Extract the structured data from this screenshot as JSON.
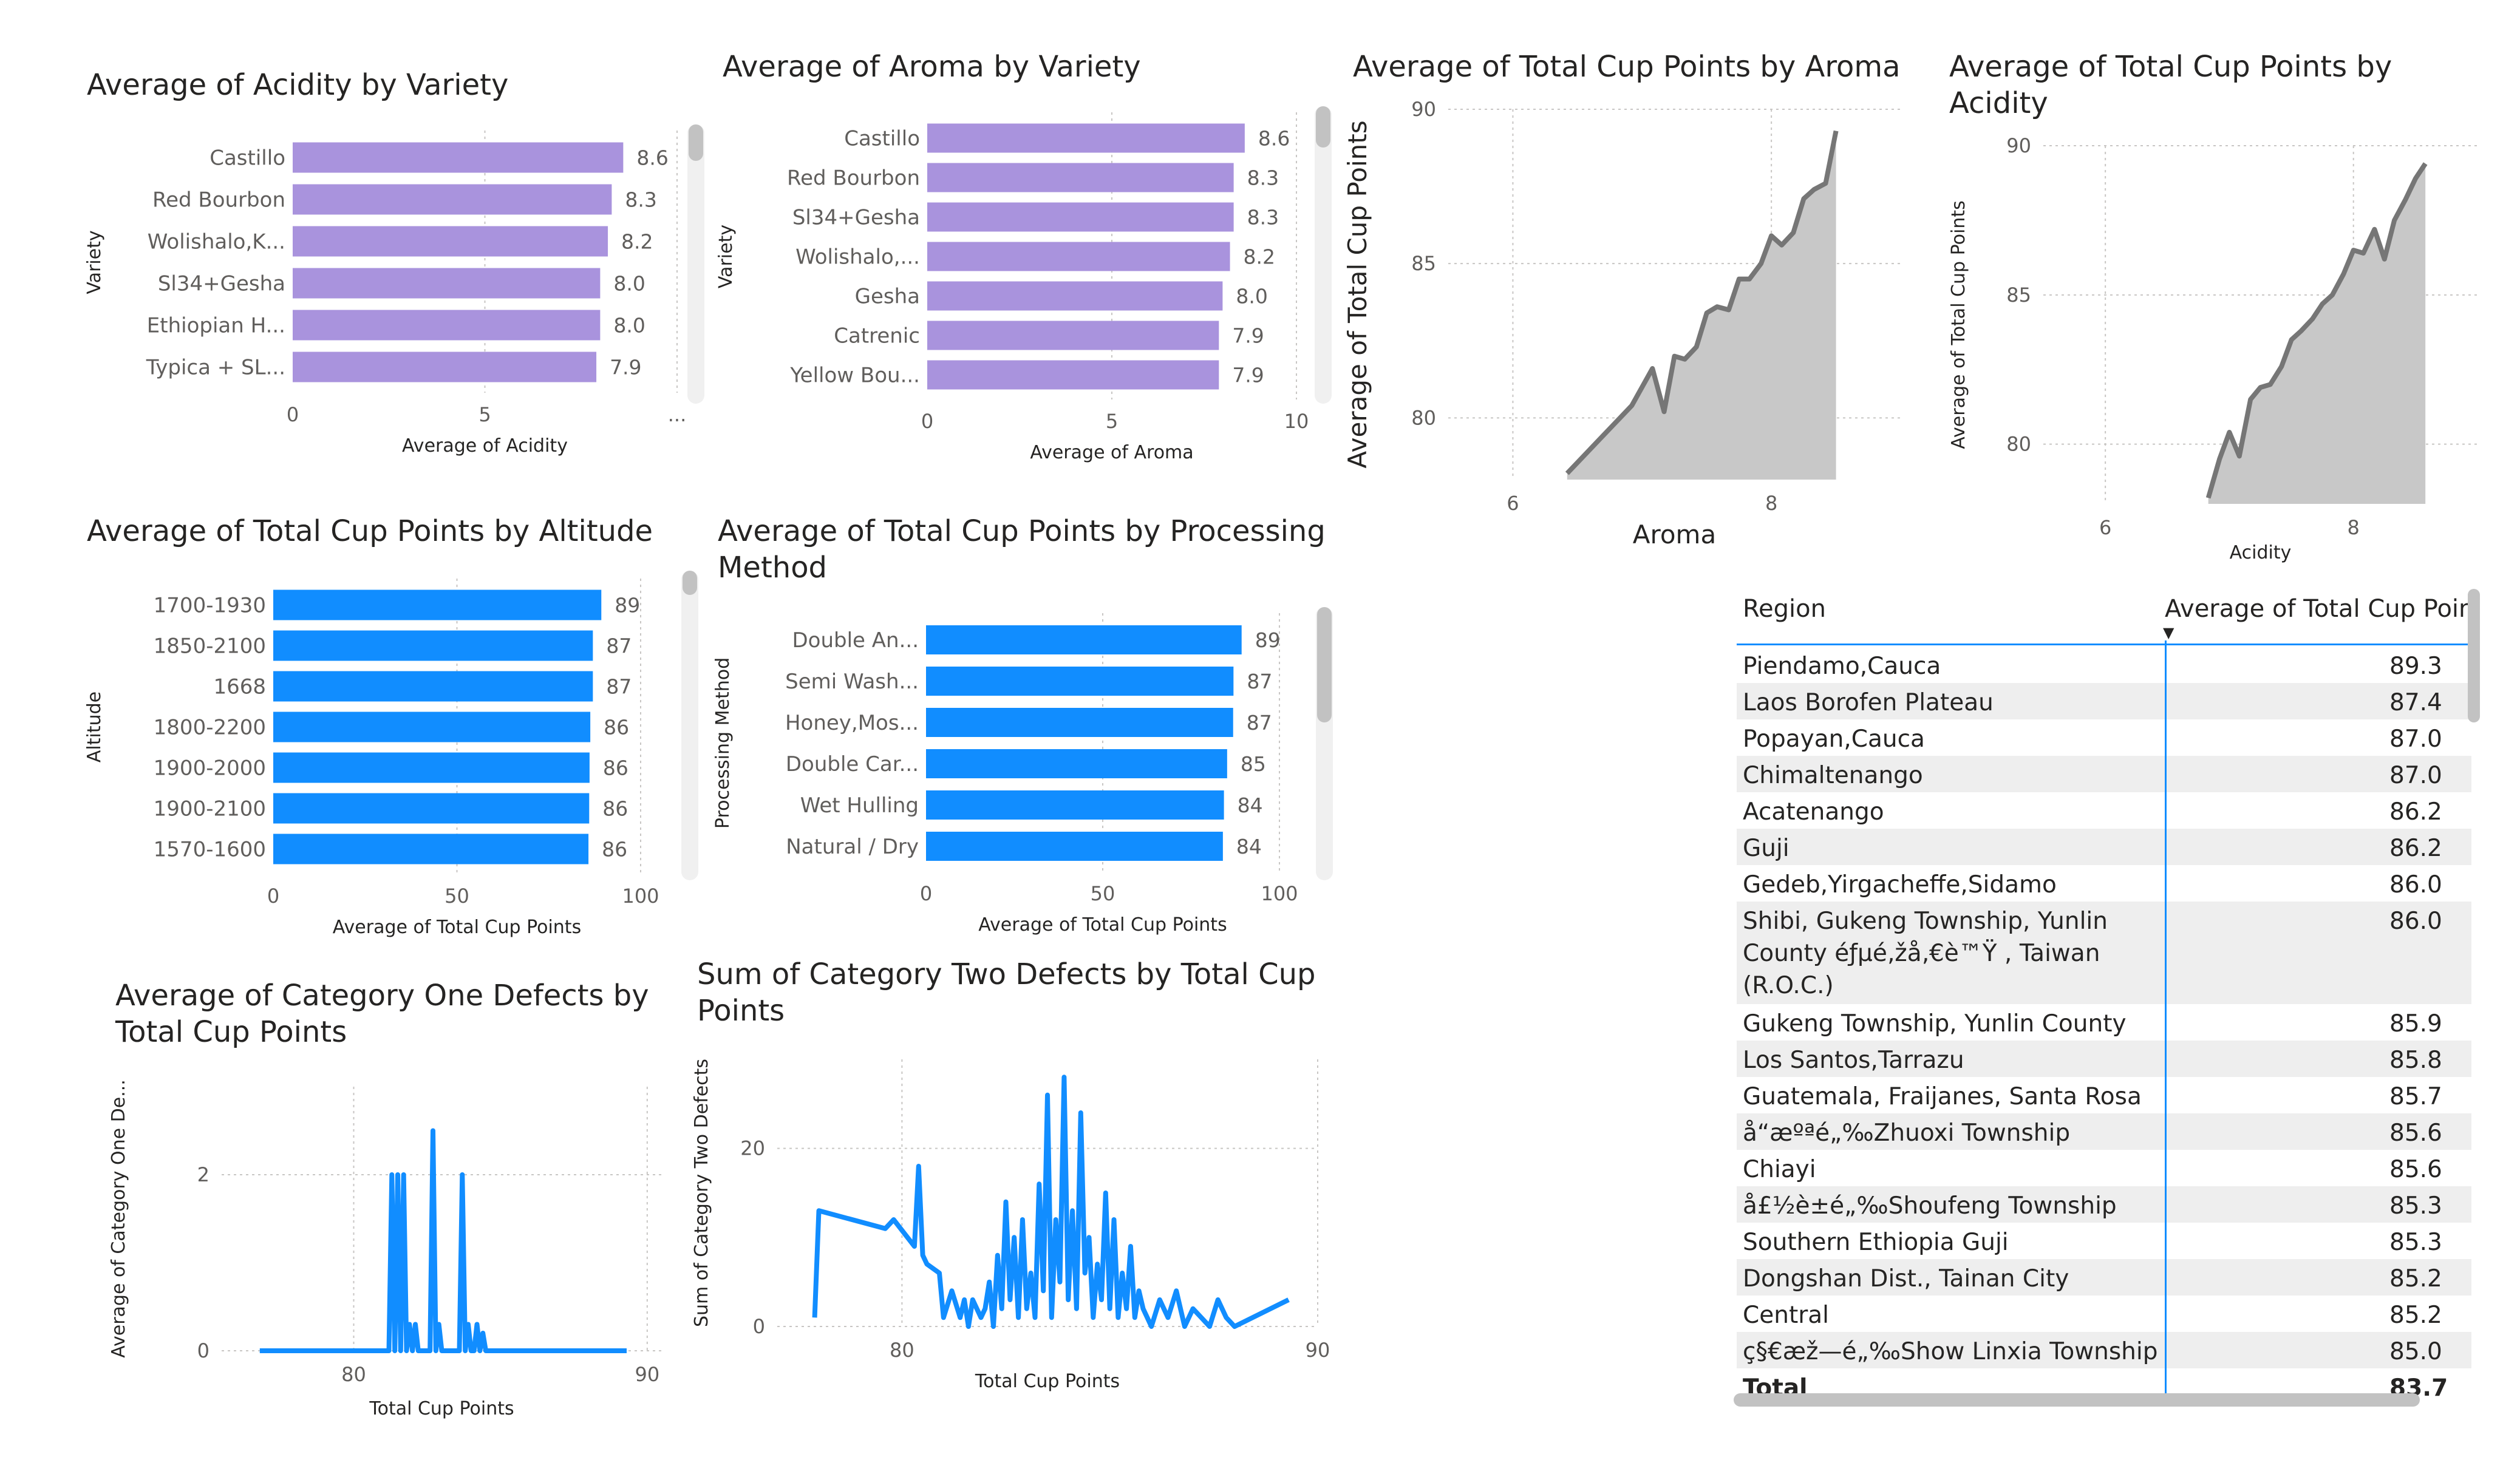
{
  "colors": {
    "purple": "#a993dd",
    "blue": "#118dff",
    "area_line": "#767676",
    "area_fill": "#c8c8c8",
    "grid": "#c8c6c4",
    "row_alt": "#eeeeee"
  },
  "charts": {
    "acidity_by_variety": {
      "title": "Average of Acidity by Variety",
      "chart_data": {
        "type": "bar",
        "orientation": "horizontal",
        "categories": [
          "Castillo",
          "Red Bourbon",
          "Wolishalo,K...",
          "Sl34+Gesha",
          "Ethiopian H...",
          "Typica + SL..."
        ],
        "values": [
          8.6,
          8.3,
          8.2,
          8.0,
          8.0,
          7.9
        ],
        "value_labels": [
          "8.6",
          "8.3",
          "8.2",
          "8.0",
          "8.0",
          "7.9"
        ],
        "xlabel": "Average of Acidity",
        "ylabel": "Variety",
        "ticks": [
          "0",
          "5",
          "..."
        ],
        "xlim": [
          0,
          10
        ],
        "grid": true
      }
    },
    "aroma_by_variety": {
      "title": "Average of Aroma by Variety",
      "chart_data": {
        "type": "bar",
        "orientation": "horizontal",
        "categories": [
          "Castillo",
          "Red Bourbon",
          "Sl34+Gesha",
          "Wolishalo,...",
          "Gesha",
          "Catrenic",
          "Yellow Bou..."
        ],
        "values": [
          8.6,
          8.3,
          8.3,
          8.2,
          8.0,
          7.9,
          7.9
        ],
        "value_labels": [
          "8.6",
          "8.3",
          "8.3",
          "8.2",
          "8.0",
          "7.9",
          "7.9"
        ],
        "xlabel": "Average of Aroma",
        "ylabel": "Variety",
        "ticks": [
          "0",
          "5",
          "10"
        ],
        "xlim": [
          0,
          10
        ],
        "grid": true
      }
    },
    "tcp_by_aroma": {
      "title": "Average of Total Cup Points by Aroma",
      "chart_data": {
        "type": "area",
        "x": [
          6.42,
          6.67,
          6.92,
          7.08,
          7.17,
          7.25,
          7.33,
          7.42,
          7.5,
          7.58,
          7.67,
          7.75,
          7.83,
          7.92,
          8.0,
          8.08,
          8.17,
          8.25,
          8.33,
          8.42,
          8.5
        ],
        "y": [
          78.2,
          79.3,
          80.4,
          81.6,
          80.2,
          82.0,
          81.9,
          82.3,
          83.4,
          83.6,
          83.5,
          84.5,
          84.5,
          85.0,
          85.9,
          85.6,
          86.0,
          87.1,
          87.4,
          87.6,
          89.3
        ],
        "xlabel": "Aroma",
        "ylabel": "Average of Total Cup Points",
        "xticks": [
          "6",
          "8"
        ],
        "yticks": [
          "80",
          "85",
          "90"
        ],
        "xlim": [
          5.5,
          9.0
        ],
        "ylim": [
          78,
          90
        ],
        "grid": true
      }
    },
    "tcp_by_acidity": {
      "title": "Average of Total Cup Points by\nAcidity",
      "chart_data": {
        "type": "area",
        "x": [
          6.83,
          6.92,
          7.0,
          7.08,
          7.17,
          7.25,
          7.33,
          7.42,
          7.5,
          7.58,
          7.67,
          7.75,
          7.83,
          7.92,
          8.0,
          8.08,
          8.17,
          8.25,
          8.33,
          8.42,
          8.5,
          8.58
        ],
        "y": [
          78.2,
          79.5,
          80.4,
          79.6,
          81.5,
          81.9,
          82.0,
          82.6,
          83.5,
          83.8,
          84.2,
          84.7,
          85.0,
          85.7,
          86.5,
          86.4,
          87.2,
          86.2,
          87.5,
          88.2,
          88.9,
          89.4
        ],
        "xlabel": "Acidity",
        "ylabel": "Average of Total Cup Points",
        "xticks": [
          "6",
          "8"
        ],
        "yticks": [
          "80",
          "85",
          "90"
        ],
        "xlim": [
          5.5,
          9.0
        ],
        "ylim": [
          78,
          90
        ],
        "grid": true
      }
    },
    "tcp_by_altitude": {
      "title": "Average of Total Cup Points by Altitude",
      "chart_data": {
        "type": "bar",
        "orientation": "horizontal",
        "categories": [
          "1700-1930",
          "1850-2100",
          "1668",
          "1800-2200",
          "1900-2000",
          "1900-2100",
          "1570-1600"
        ],
        "values": [
          89.3,
          87.0,
          87.0,
          86.3,
          86.1,
          86.0,
          85.8
        ],
        "value_labels": [
          "89",
          "87",
          "87",
          "86",
          "86",
          "86",
          "86"
        ],
        "xlabel": "Average of Total Cup Points",
        "ylabel": "Altitude",
        "ticks": [
          "0",
          "50",
          "100"
        ],
        "xlim": [
          0,
          100
        ],
        "grid": true
      }
    },
    "tcp_by_processing": {
      "title": "Average of Total Cup Points by Processing\nMethod",
      "chart_data": {
        "type": "bar",
        "orientation": "horizontal",
        "categories": [
          "Double An...",
          "Semi Wash...",
          "Honey,Mos...",
          "Double Car...",
          "Wet Hulling",
          "Natural / Dry"
        ],
        "values": [
          89.3,
          87.0,
          86.9,
          85.2,
          84.3,
          84.0
        ],
        "value_labels": [
          "89",
          "87",
          "87",
          "85",
          "84",
          "84"
        ],
        "xlabel": "Average of Total Cup Points",
        "ylabel": "Processing Method",
        "ticks": [
          "0",
          "50",
          "100"
        ],
        "xlim": [
          0,
          100
        ],
        "grid": true
      }
    },
    "cat1_by_tcp": {
      "title": "Average of Category One Defects by\nTotal Cup Points",
      "chart_data": {
        "type": "line",
        "x": [
          76.8,
          81.2,
          81.3,
          81.4,
          81.5,
          81.6,
          81.7,
          81.8,
          81.9,
          82.0,
          82.1,
          82.2,
          82.3,
          82.4,
          82.5,
          82.6,
          82.7,
          82.8,
          82.9,
          83.0,
          83.1,
          83.2,
          83.3,
          83.4,
          83.5,
          83.6,
          83.7,
          83.8,
          83.9,
          84.0,
          84.1,
          84.2,
          84.3,
          84.4,
          84.5,
          84.6,
          84.7,
          84.8,
          89.3
        ],
        "y": [
          0,
          0,
          2,
          0,
          2,
          0,
          2,
          0,
          0.3,
          0,
          0.3,
          0,
          0,
          0,
          0,
          0,
          2.5,
          0,
          0.3,
          0,
          0,
          0,
          0,
          0,
          0,
          0,
          2,
          0,
          0.3,
          0,
          0,
          0.3,
          0,
          0.2,
          0,
          0,
          0,
          0,
          0
        ],
        "xlabel": "Total Cup Points",
        "ylabel": "Average of Category One De...",
        "xticks": [
          "80",
          "90"
        ],
        "yticks": [
          "0",
          "2"
        ],
        "xlim": [
          75.5,
          90.5
        ],
        "ylim": [
          0,
          3.0
        ],
        "grid": true
      }
    },
    "cat2_by_tcp": {
      "title": "Sum of Category Two Defects by Total Cup\nPoints",
      "chart_data": {
        "type": "line",
        "x": [
          77.9,
          78.0,
          79.6,
          79.8,
          80.3,
          80.4,
          80.5,
          80.6,
          80.9,
          81.0,
          81.2,
          81.4,
          81.5,
          81.6,
          81.7,
          81.9,
          82.0,
          82.1,
          82.2,
          82.3,
          82.4,
          82.5,
          82.6,
          82.7,
          82.8,
          82.9,
          83.0,
          83.1,
          83.2,
          83.3,
          83.4,
          83.5,
          83.6,
          83.7,
          83.8,
          83.9,
          84.0,
          84.1,
          84.2,
          84.3,
          84.4,
          84.5,
          84.6,
          84.7,
          84.8,
          84.9,
          85.0,
          85.1,
          85.2,
          85.3,
          85.4,
          85.5,
          85.6,
          85.7,
          85.8,
          86.0,
          86.2,
          86.4,
          86.6,
          86.8,
          87.0,
          87.2,
          87.4,
          87.6,
          87.8,
          88.0,
          89.3
        ],
        "y": [
          1,
          13,
          11,
          12,
          9,
          18,
          8,
          7,
          6,
          1,
          4,
          1,
          3,
          0,
          3,
          1,
          2,
          5,
          0,
          8,
          2,
          14,
          3,
          10,
          1,
          12,
          2,
          6,
          1,
          16,
          4,
          26,
          1,
          12,
          5,
          28,
          3,
          13,
          2,
          24,
          6,
          10,
          1,
          7,
          3,
          15,
          2,
          12,
          1,
          6,
          2,
          9,
          1,
          4,
          2,
          0,
          3,
          1,
          4,
          0,
          2,
          1,
          0,
          3,
          1,
          0,
          3
        ],
        "xlabel": "Total Cup Points",
        "ylabel": "Sum of Category Two Defects",
        "xticks": [
          "80",
          "90"
        ],
        "yticks": [
          "0",
          "20"
        ],
        "xlim": [
          77.0,
          90.0
        ],
        "ylim": [
          0,
          30
        ],
        "grid": true
      }
    }
  },
  "table": {
    "headers": {
      "region": "Region",
      "avg": "Average of Total Cup Point"
    },
    "rows": [
      {
        "region": "Piendamo,Cauca",
        "avg": "89.3"
      },
      {
        "region": "Laos Borofen Plateau",
        "avg": "87.4"
      },
      {
        "region": "Popayan,Cauca",
        "avg": "87.0"
      },
      {
        "region": "Chimaltenango",
        "avg": "87.0"
      },
      {
        "region": "Acatenango",
        "avg": "86.2"
      },
      {
        "region": "Guji",
        "avg": "86.2"
      },
      {
        "region": "Gedeb,Yirgacheffe,Sidamo",
        "avg": "86.0"
      },
      {
        "region": "Shibi, Gukeng Township, Yunlin\nCounty éƒµé‚žå‚€è™Ÿ , Taiwan\n(R.O.C.)",
        "avg": "86.0"
      },
      {
        "region": "Gukeng Township, Yunlin County",
        "avg": "85.9"
      },
      {
        "region": "Los Santos,Tarrazu",
        "avg": "85.8"
      },
      {
        "region": "Guatemala, Fraijanes, Santa Rosa",
        "avg": "85.7"
      },
      {
        "region": "å“æºªé„‰Zhuoxi Township",
        "avg": "85.6"
      },
      {
        "region": "Chiayi",
        "avg": "85.6"
      },
      {
        "region": "å£½è±é„‰Shoufeng Township",
        "avg": "85.3"
      },
      {
        "region": "Southern Ethiopia Guji",
        "avg": "85.3"
      },
      {
        "region": "Dongshan Dist., Tainan City",
        "avg": "85.2"
      },
      {
        "region": "Central",
        "avg": "85.2"
      },
      {
        "region": "ç§€æž—é„‰Show Linxia Township",
        "avg": "85.0"
      }
    ],
    "total": {
      "label": "Total",
      "avg": "83.7"
    }
  }
}
